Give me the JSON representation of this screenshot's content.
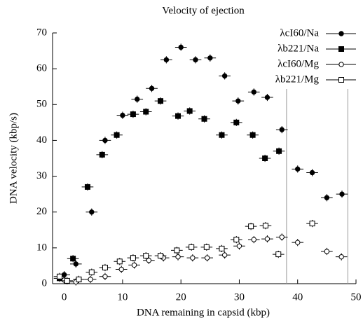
{
  "chart_data": {
    "type": "scatter",
    "title": "Velocity of ejection",
    "x_label": "DNA remaining in capsid (kbp)",
    "y_label": "DNA velocity (kbp/s)",
    "xlim": [
      -2,
      50
    ],
    "ylim": [
      0,
      70
    ],
    "xticks": [
      0,
      10,
      20,
      30,
      40,
      50
    ],
    "yticks": [
      0,
      10,
      20,
      30,
      40,
      50,
      60,
      70
    ],
    "vlines": [
      38.1,
      48.6
    ],
    "legend": "upper right",
    "series": [
      {
        "name": "λcI60/Na",
        "marker": "filled-circle",
        "color": "#000",
        "xerr": 1,
        "yerr": 1,
        "x": [
          0,
          2,
          4.7,
          7,
          10,
          12.5,
          15,
          17.5,
          20,
          22.5,
          25,
          27.5,
          29.8,
          32.5,
          34.8,
          37.3,
          40,
          42.5,
          45,
          47.6
        ],
        "values": [
          2.5,
          5.5,
          20,
          40,
          47,
          51.5,
          54.5,
          62.5,
          66,
          62.5,
          63,
          58,
          51,
          53.5,
          52,
          43,
          32,
          31,
          24,
          25
        ]
      },
      {
        "name": "λb221/Na",
        "marker": "filled-square",
        "color": "#000",
        "xerr": 1,
        "yerr": 1,
        "x": [
          -0.8,
          1.5,
          4,
          6.5,
          9,
          11.8,
          14,
          16.5,
          19.5,
          21.5,
          24,
          27,
          29.5,
          32.3,
          34.4,
          36.8
        ],
        "values": [
          1.5,
          7,
          27,
          36,
          41.5,
          47.3,
          48,
          51,
          46.8,
          48.2,
          46,
          41.5,
          45,
          41.5,
          35,
          37
        ]
      },
      {
        "name": "λcI60/Mg",
        "marker": "open-circle",
        "color": "#000",
        "xerr": 1,
        "yerr": 1,
        "x": [
          0,
          2,
          4.5,
          7,
          9.8,
          12,
          14.5,
          17,
          19.5,
          22,
          24.5,
          27.5,
          30,
          32.5,
          34.8,
          37.3,
          40,
          45,
          47.5
        ],
        "values": [
          1,
          0.5,
          1.2,
          2,
          4,
          5.2,
          6.5,
          7.2,
          7.5,
          7.2,
          7.2,
          8,
          10.5,
          12.3,
          12.5,
          13,
          11.5,
          9,
          7.5
        ]
      },
      {
        "name": "λb221/Mg",
        "marker": "open-square",
        "color": "#000",
        "xerr": 1,
        "yerr": 1,
        "x": [
          -0.8,
          0.5,
          2.5,
          4.7,
          7,
          9.5,
          11.8,
          14,
          16.5,
          19.3,
          21.8,
          24.4,
          27,
          29.5,
          32,
          34.5,
          36.7,
          42.5
        ],
        "values": [
          2,
          0.8,
          1.2,
          3.2,
          4.5,
          6.2,
          7.2,
          7.8,
          7.8,
          9.3,
          10.2,
          10.2,
          9.8,
          12.3,
          16,
          16.2,
          8.2,
          16.8
        ]
      }
    ]
  }
}
